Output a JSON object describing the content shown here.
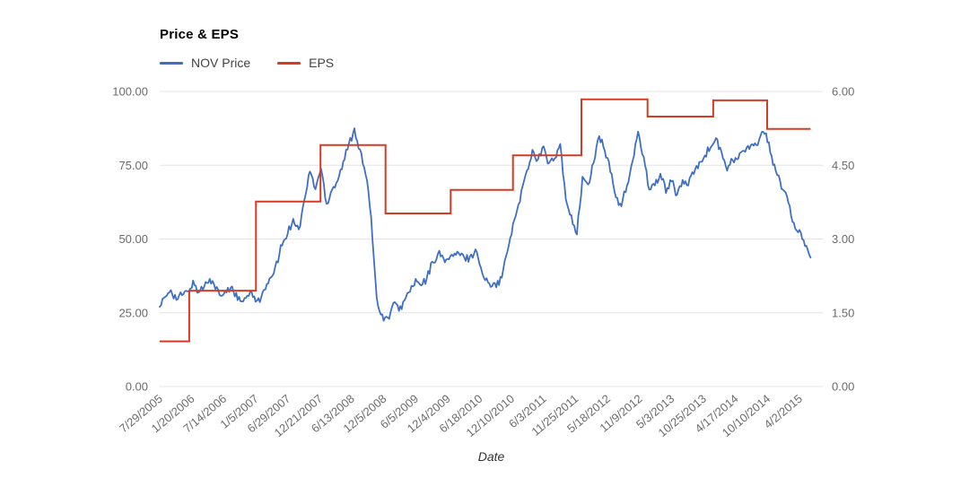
{
  "chart": {
    "title": "Price & EPS",
    "xlabel": "Date",
    "legend": [
      {
        "label": "NOV Price",
        "color": "#3e6fc4"
      },
      {
        "label": "EPS",
        "color": "#d73a22"
      }
    ]
  },
  "chart_data": {
    "type": "line",
    "title": "Price & EPS",
    "xlabel": "Date",
    "grid": "horizontal",
    "legend_position": "top-left",
    "x_tick_labels": [
      "7/29/2005",
      "1/20/2006",
      "7/14/2006",
      "1/5/2007",
      "6/29/2007",
      "12/21/2007",
      "6/13/2008",
      "12/5/2008",
      "6/5/2009",
      "12/4/2009",
      "6/18/2010",
      "12/10/2010",
      "6/3/2011",
      "11/25/2011",
      "5/18/2012",
      "11/9/2012",
      "5/3/2013",
      "10/25/2013",
      "4/17/2014",
      "10/10/2014",
      "4/2/2015"
    ],
    "left_axis": {
      "tick_labels": [
        "100.00",
        "75.00",
        "50.00",
        "25.00",
        "0.00"
      ],
      "tick_values": [
        100,
        75,
        50,
        25,
        0
      ],
      "min": 0,
      "max": 100
    },
    "right_axis": {
      "tick_labels": [
        "6.00",
        "4.50",
        "3.00",
        "1.50",
        "0.00"
      ],
      "tick_values": [
        6,
        4.5,
        3,
        1.5,
        0
      ],
      "min": 0,
      "max": 6
    },
    "series": [
      {
        "name": "NOV Price",
        "axis": "left",
        "color": "#3e6fc4",
        "x_unit": "month_index_from_2005-07",
        "monthly_values": [
          27.5,
          30,
          33,
          29.5,
          31,
          32,
          35.5,
          32,
          34,
          37,
          33.5,
          30.5,
          32,
          34,
          29.5,
          28.5,
          31,
          30.5,
          29,
          33,
          36.5,
          42,
          48,
          52,
          57,
          53,
          63,
          73,
          67,
          74,
          62,
          67,
          70,
          76,
          82,
          87.5,
          80,
          72,
          58,
          30,
          24,
          23,
          28,
          26,
          29,
          32.5,
          36,
          34,
          36.5,
          42,
          45,
          43.5,
          43,
          45,
          44.5,
          43,
          44.5,
          46,
          38,
          35,
          35.5,
          34.5,
          42,
          50,
          58,
          66,
          73,
          80,
          77,
          81,
          75.5,
          77,
          82,
          63,
          58,
          51.5,
          71,
          68,
          76,
          85,
          80,
          73,
          64,
          61.5,
          68,
          76,
          86,
          78,
          67,
          68.5,
          72,
          66,
          70,
          64.5,
          70,
          68,
          72.5,
          76,
          78.5,
          81,
          84,
          79,
          73.5,
          76.5,
          77.5,
          80,
          80.5,
          82,
          84.5,
          86,
          78,
          71.5,
          67,
          62,
          55,
          53,
          48,
          43.5
        ]
      },
      {
        "name": "EPS",
        "axis": "right",
        "color": "#d73a22",
        "style": "step",
        "x_unit": "month_index_from_2005-07",
        "points": [
          [
            0,
            0.92
          ],
          [
            5.3,
            1.95
          ],
          [
            17.3,
            3.76
          ],
          [
            28.9,
            4.91
          ],
          [
            40.6,
            3.52
          ],
          [
            52.3,
            4.0
          ],
          [
            63.5,
            4.7
          ],
          [
            75.8,
            5.84
          ],
          [
            87.7,
            5.49
          ],
          [
            99.5,
            5.82
          ],
          [
            109.2,
            5.24
          ]
        ],
        "end_month": 117
      }
    ]
  }
}
